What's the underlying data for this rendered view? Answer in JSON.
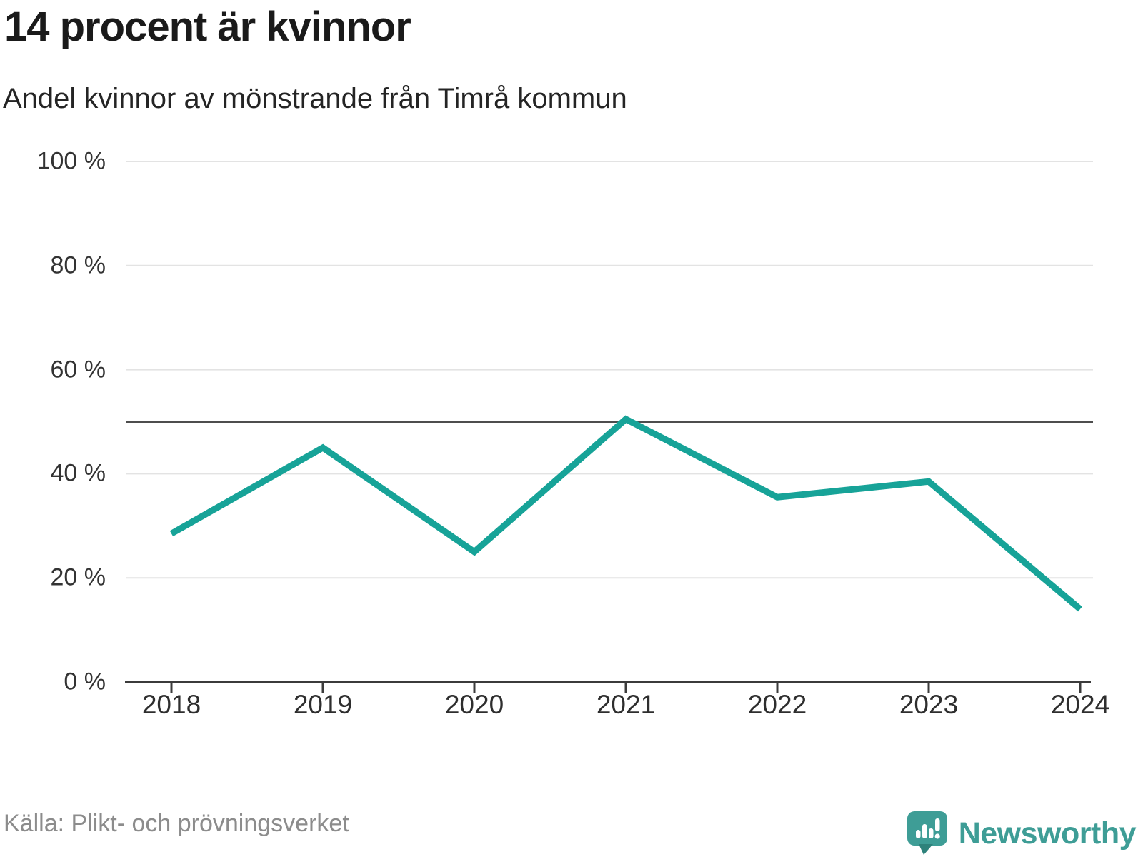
{
  "header": {
    "title": "14 procent är kvinnor",
    "subtitle": "Andel kvinnor av mönstrande från Timrå kommun"
  },
  "footer": {
    "source": "Källa: Plikt- och prövningsverket",
    "brand": "Newsworthy",
    "logo_icon": "newsworthy-speech-bubble-chart-icon"
  },
  "colors": {
    "line": "#17a398",
    "reference_line": "#4d4d4d",
    "gridline": "#e3e3e3",
    "axis": "#3b3b3b",
    "tick_text": "#333333",
    "source_text": "#8c8c8c",
    "brand_teal": "#3e9d96",
    "brand_teal_dark": "#2e827b"
  },
  "chart_data": {
    "type": "line",
    "title": "14 procent är kvinnor",
    "subtitle": "Andel kvinnor av mönstrande från Timrå kommun",
    "x": [
      "2018",
      "2019",
      "2020",
      "2021",
      "2022",
      "2023",
      "2024"
    ],
    "series": [
      {
        "name": "Andel kvinnor av mönstrande",
        "values": [
          28.5,
          45,
          25,
          50.5,
          35.5,
          38.5,
          14
        ]
      }
    ],
    "unit": "%",
    "ylim": [
      0,
      100
    ],
    "yticks": [
      0,
      20,
      40,
      60,
      80,
      100
    ],
    "ytick_labels": [
      "0 %",
      "20 %",
      "40 %",
      "60 %",
      "80 %",
      "100 %"
    ],
    "reference_line": 50,
    "grid": "horizontal",
    "legend": "none",
    "source": "Källa: Plikt- och prövningsverket"
  }
}
